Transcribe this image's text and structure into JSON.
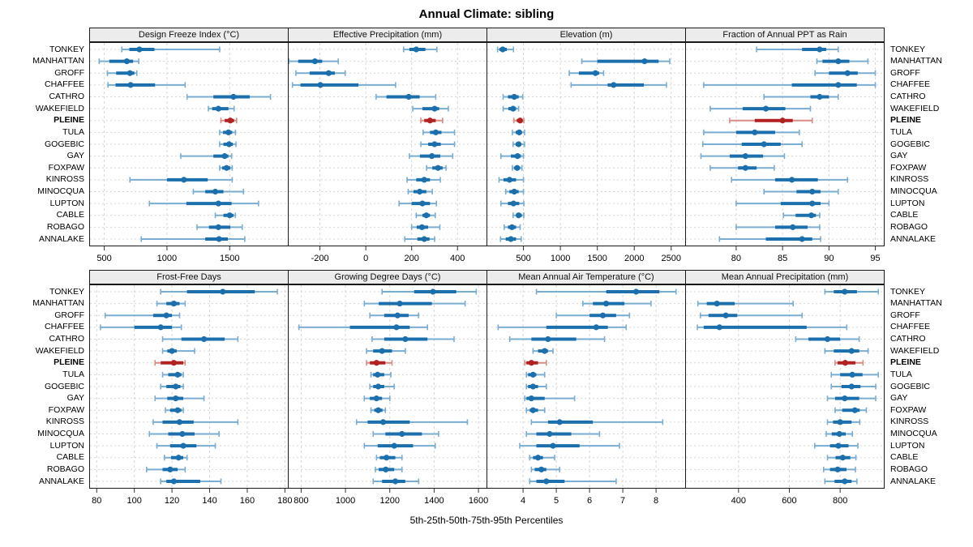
{
  "title": "Annual Climate: sibling",
  "footer": "5th-25th-50th-75th-95th Percentiles",
  "colors": {
    "series": "#1c6fad",
    "series_light": "#7aadd2",
    "highlight": "#b22222",
    "highlight_light": "#d98c84",
    "gridline": "#d6d6d6",
    "panel_border": "#1a1a1a",
    "strip_bg": "#ececec",
    "tick": "#333333"
  },
  "chart_data": {
    "type": "dotplot-percentiles",
    "percentile_labels": [
      "5th",
      "25th",
      "50th",
      "75th",
      "95th"
    ],
    "legend_note": "5th-25th-50th-75th-95th Percentiles",
    "highlight_station": "PLEINE",
    "stations": [
      "TONKEY",
      "MANHATTAN",
      "GROFF",
      "CHAFFEE",
      "CATHRO",
      "WAKEFIELD",
      "PLEINE",
      "TULA",
      "GOGEBIC",
      "GAY",
      "FOXPAW",
      "KINROSS",
      "MINOCQUA",
      "LUPTON",
      "CABLE",
      "ROBAGO",
      "ANNALAKE"
    ],
    "panel_rows": [
      [
        0,
        1,
        2,
        3
      ],
      [
        4,
        5,
        6,
        7
      ]
    ],
    "panels": [
      {
        "title": "Design Freeze Index (°C)",
        "xlim": [
          380,
          1970
        ],
        "ticks": [
          500,
          1000,
          1500
        ],
        "values": [
          [
            640,
            700,
            780,
            900,
            1420
          ],
          [
            460,
            540,
            680,
            730,
            775
          ],
          [
            525,
            595,
            705,
            740,
            760
          ],
          [
            530,
            590,
            710,
            905,
            1145
          ],
          [
            1160,
            1370,
            1530,
            1660,
            1825
          ],
          [
            1330,
            1360,
            1410,
            1490,
            1535
          ],
          [
            1430,
            1460,
            1505,
            1535,
            1555
          ],
          [
            1420,
            1447,
            1490,
            1520,
            1546
          ],
          [
            1420,
            1450,
            1495,
            1525,
            1550
          ],
          [
            1110,
            1370,
            1460,
            1490,
            1515
          ],
          [
            1420,
            1440,
            1475,
            1505,
            1520
          ],
          [
            705,
            1000,
            1135,
            1325,
            1520
          ],
          [
            1210,
            1305,
            1385,
            1450,
            1610
          ],
          [
            860,
            1155,
            1410,
            1515,
            1730
          ],
          [
            1385,
            1450,
            1500,
            1530,
            1545
          ],
          [
            1240,
            1335,
            1410,
            1505,
            1600
          ],
          [
            795,
            1305,
            1415,
            1485,
            1620
          ]
        ]
      },
      {
        "title": "Effective Precipitation (mm)",
        "xlim": [
          -340,
          530
        ],
        "ticks": [
          -200,
          0,
          200,
          400
        ],
        "values": [
          [
            165,
            190,
            220,
            260,
            310
          ],
          [
            -335,
            -295,
            -222,
            -190,
            -120
          ],
          [
            -305,
            -245,
            -162,
            -135,
            -90
          ],
          [
            -320,
            -285,
            -198,
            -32,
            130
          ],
          [
            45,
            90,
            187,
            235,
            305
          ],
          [
            205,
            247,
            300,
            320,
            360
          ],
          [
            240,
            255,
            280,
            305,
            335
          ],
          [
            250,
            280,
            305,
            330,
            387
          ],
          [
            240,
            272,
            300,
            327,
            387
          ],
          [
            190,
            236,
            288,
            325,
            379
          ],
          [
            265,
            290,
            315,
            335,
            350
          ],
          [
            180,
            220,
            255,
            280,
            325
          ],
          [
            185,
            208,
            235,
            264,
            290
          ],
          [
            145,
            200,
            247,
            280,
            308
          ],
          [
            220,
            247,
            264,
            280,
            303
          ],
          [
            200,
            222,
            245,
            272,
            323
          ],
          [
            170,
            225,
            255,
            278,
            300
          ]
        ]
      },
      {
        "title": "Elevation (m)",
        "xlim": [
          0,
          2700
        ],
        "ticks": [
          500,
          1000,
          1500,
          2000,
          2500
        ],
        "values": [
          [
            150,
            175,
            220,
            275,
            365
          ],
          [
            1290,
            1500,
            2140,
            2330,
            2480
          ],
          [
            1120,
            1250,
            1475,
            1525,
            1585
          ],
          [
            1145,
            1640,
            1720,
            2130,
            2435
          ],
          [
            225,
            290,
            375,
            435,
            490
          ],
          [
            225,
            295,
            360,
            400,
            435
          ],
          [
            370,
            410,
            455,
            490,
            505
          ],
          [
            350,
            395,
            443,
            480,
            515
          ],
          [
            360,
            395,
            435,
            470,
            515
          ],
          [
            195,
            330,
            420,
            465,
            500
          ],
          [
            350,
            375,
            415,
            455,
            480
          ],
          [
            170,
            230,
            312,
            400,
            500
          ],
          [
            260,
            310,
            375,
            435,
            500
          ],
          [
            195,
            290,
            365,
            443,
            505
          ],
          [
            360,
            400,
            435,
            478,
            505
          ],
          [
            240,
            290,
            345,
            400,
            455
          ],
          [
            190,
            260,
            330,
            400,
            470
          ]
        ]
      },
      {
        "title": "Fraction of Annual PPT as Rain",
        "xlim": [
          74.5,
          96
        ],
        "ticks": [
          80,
          85,
          90,
          95
        ],
        "values": [
          [
            82.2,
            87.1,
            89.0,
            89.7,
            91.0
          ],
          [
            88.7,
            89.3,
            91.0,
            92.2,
            94.2
          ],
          [
            88.5,
            90.0,
            92.0,
            93.1,
            95.0
          ],
          [
            76.5,
            86.0,
            91.0,
            93.0,
            95.0
          ],
          [
            83.0,
            88.0,
            89.0,
            90.0,
            91.0
          ],
          [
            77.2,
            80.7,
            83.2,
            85.3,
            88.0
          ],
          [
            79.3,
            82.0,
            85.0,
            86.1,
            88.2
          ],
          [
            76.5,
            80.0,
            82.0,
            84.2,
            86.8
          ],
          [
            76.4,
            80.6,
            83.0,
            84.8,
            87.1
          ],
          [
            76.2,
            79.3,
            81.0,
            82.9,
            85.2
          ],
          [
            77.2,
            80.2,
            81.0,
            82.2,
            84.1
          ],
          [
            79.5,
            84.2,
            86.0,
            88.8,
            92.0
          ],
          [
            83.0,
            86.5,
            88.2,
            89.1,
            91.0
          ],
          [
            80.0,
            84.8,
            88.2,
            89.1,
            90.0
          ],
          [
            85.1,
            86.4,
            88.1,
            88.6,
            89.0
          ],
          [
            80.0,
            84.2,
            86.1,
            87.7,
            89.0
          ],
          [
            78.2,
            83.2,
            87.1,
            88.2,
            89.1
          ]
        ]
      },
      {
        "title": "Frost-Free Days",
        "xlim": [
          76,
          182
        ],
        "ticks": [
          80,
          100,
          120,
          140,
          160,
          180
        ],
        "values": [
          [
            114,
            128,
            147,
            164,
            176
          ],
          [
            112,
            117,
            121,
            124,
            127
          ],
          [
            84.5,
            110,
            117,
            120,
            124
          ],
          [
            82,
            100,
            114,
            120,
            125
          ],
          [
            115,
            125,
            137,
            148,
            155
          ],
          [
            115,
            117.5,
            120,
            122.5,
            132
          ],
          [
            111,
            114,
            121,
            126,
            127
          ],
          [
            115,
            118,
            123,
            125,
            126
          ],
          [
            114,
            117,
            122,
            124.5,
            126
          ],
          [
            111,
            117.5,
            122,
            126,
            137
          ],
          [
            116.5,
            119,
            123,
            125,
            126
          ],
          [
            110,
            115,
            124,
            131.5,
            155
          ],
          [
            108,
            118,
            125.5,
            132,
            145
          ],
          [
            112,
            119,
            126,
            133,
            143
          ],
          [
            116,
            119.5,
            123.5,
            126,
            128
          ],
          [
            106.5,
            115,
            119,
            123,
            127
          ],
          [
            114,
            117,
            121,
            135,
            146
          ]
        ]
      },
      {
        "title": "Growing Degree Days (°C)",
        "xlim": [
          740,
          1640
        ],
        "ticks": [
          800,
          1000,
          1200,
          1400,
          1600
        ],
        "values": [
          [
            1165,
            1310,
            1395,
            1500,
            1590
          ],
          [
            1085,
            1150,
            1245,
            1390,
            1540
          ],
          [
            1110,
            1175,
            1235,
            1285,
            1330
          ],
          [
            790,
            1020,
            1230,
            1290,
            1370
          ],
          [
            1120,
            1175,
            1270,
            1370,
            1490
          ],
          [
            1095,
            1125,
            1165,
            1210,
            1270
          ],
          [
            1095,
            1110,
            1140,
            1180,
            1210
          ],
          [
            1115,
            1125,
            1145,
            1175,
            1205
          ],
          [
            1110,
            1125,
            1148,
            1175,
            1220
          ],
          [
            1085,
            1110,
            1140,
            1165,
            1200
          ],
          [
            1115,
            1130,
            1148,
            1167,
            1180
          ],
          [
            1050,
            1100,
            1170,
            1290,
            1550
          ],
          [
            1125,
            1180,
            1255,
            1345,
            1420
          ],
          [
            1085,
            1145,
            1220,
            1305,
            1405
          ],
          [
            1140,
            1155,
            1185,
            1225,
            1255
          ],
          [
            1135,
            1150,
            1182,
            1220,
            1255
          ],
          [
            1125,
            1165,
            1225,
            1270,
            1330
          ]
        ]
      },
      {
        "title": "Mean Annual Air Temperature (°C)",
        "xlim": [
          2.9,
          8.9
        ],
        "ticks": [
          4,
          5,
          6,
          7,
          8
        ],
        "values": [
          [
            4.4,
            6.5,
            7.4,
            8.1,
            8.6
          ],
          [
            5.8,
            6.1,
            6.5,
            7.05,
            7.85
          ],
          [
            5.0,
            6.0,
            6.4,
            6.8,
            7.2
          ],
          [
            3.25,
            4.7,
            6.2,
            6.55,
            7.1
          ],
          [
            3.6,
            4.25,
            4.75,
            5.6,
            6.45
          ],
          [
            4.3,
            4.45,
            4.65,
            4.75,
            4.9
          ],
          [
            4.05,
            4.1,
            4.25,
            4.45,
            4.7
          ],
          [
            4.1,
            4.15,
            4.3,
            4.4,
            4.65
          ],
          [
            4.1,
            4.15,
            4.3,
            4.45,
            4.7
          ],
          [
            4.05,
            4.1,
            4.25,
            4.65,
            5.55
          ],
          [
            4.1,
            4.2,
            4.3,
            4.45,
            4.65
          ],
          [
            4.25,
            4.75,
            5.1,
            6.1,
            8.2
          ],
          [
            4.1,
            4.4,
            4.8,
            5.45,
            6.3
          ],
          [
            3.9,
            4.4,
            4.9,
            5.7,
            6.9
          ],
          [
            4.2,
            4.3,
            4.45,
            4.6,
            4.95
          ],
          [
            4.25,
            4.35,
            4.55,
            4.7,
            5.1
          ],
          [
            4.2,
            4.4,
            4.7,
            5.25,
            6.8
          ]
        ]
      },
      {
        "title": "Mean Annual Precipitation (mm)",
        "xlim": [
          190,
          975
        ],
        "ticks": [
          400,
          600,
          800
        ],
        "values": [
          [
            740,
            775,
            818,
            866,
            950
          ],
          [
            240,
            275,
            315,
            385,
            615
          ],
          [
            250,
            282,
            350,
            395,
            650
          ],
          [
            238,
            263,
            325,
            668,
            826
          ],
          [
            625,
            675,
            750,
            800,
            875
          ],
          [
            740,
            775,
            845,
            875,
            910
          ],
          [
            780,
            790,
            820,
            860,
            890
          ],
          [
            765,
            800,
            848,
            888,
            950
          ],
          [
            765,
            805,
            845,
            880,
            940
          ],
          [
            750,
            780,
            818,
            875,
            940
          ],
          [
            780,
            808,
            858,
            877,
            903
          ],
          [
            750,
            772,
            800,
            845,
            877
          ],
          [
            745,
            767,
            797,
            822,
            848
          ],
          [
            700,
            760,
            793,
            833,
            870
          ],
          [
            750,
            782,
            810,
            840,
            862
          ],
          [
            735,
            760,
            790,
            825,
            860
          ],
          [
            740,
            778,
            818,
            845,
            866
          ]
        ]
      }
    ]
  }
}
